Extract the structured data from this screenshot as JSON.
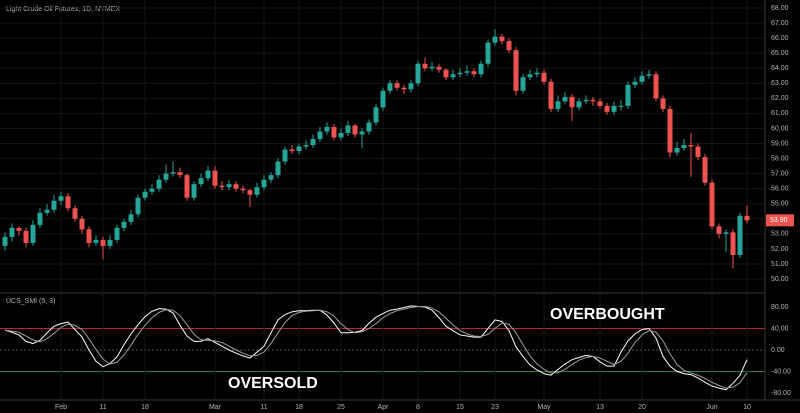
{
  "chart_data": [
    {
      "type": "candlestick",
      "title": "Light Crude Oil Futures, 1D, NYMEX",
      "up_color": "#26a69a",
      "down_color": "#ef5350",
      "ylim": [
        49.14,
        68.53
      ],
      "yticks": [
        {
          "value": 50,
          "label": "50.00"
        },
        {
          "value": 51,
          "label": "51.00"
        },
        {
          "value": 52,
          "label": "52.00"
        },
        {
          "value": 53,
          "label": "53.00"
        },
        {
          "value": 54,
          "label": "54.00"
        },
        {
          "value": 55,
          "label": "55.00"
        },
        {
          "value": 56,
          "label": "56.00"
        },
        {
          "value": 57,
          "label": "57.00"
        },
        {
          "value": 58,
          "label": "58.00"
        },
        {
          "value": 59,
          "label": "59.00"
        },
        {
          "value": 60,
          "label": "60.00"
        },
        {
          "value": 61,
          "label": "61.00"
        },
        {
          "value": 62,
          "label": "62.00"
        },
        {
          "value": 63,
          "label": "63.00"
        },
        {
          "value": 64,
          "label": "64.00"
        },
        {
          "value": 65,
          "label": "65.00"
        },
        {
          "value": 66,
          "label": "66.00"
        },
        {
          "value": 67,
          "label": "67.00"
        },
        {
          "value": 68,
          "label": "68.00"
        }
      ],
      "last_price": {
        "value": 53.9,
        "label": "53.90"
      },
      "ohlc": [
        [
          52.2,
          53.1,
          51.9,
          52.8
        ],
        [
          52.8,
          53.7,
          52.5,
          53.4
        ],
        [
          53.4,
          53.5,
          52.9,
          53.2
        ],
        [
          53.2,
          53.4,
          52.1,
          52.4
        ],
        [
          52.4,
          53.9,
          52.2,
          53.6
        ],
        [
          53.6,
          54.7,
          53.4,
          54.4
        ],
        [
          54.4,
          55.0,
          54.2,
          54.6
        ],
        [
          54.6,
          55.6,
          54.4,
          55.2
        ],
        [
          55.2,
          55.8,
          54.9,
          55.5
        ],
        [
          55.5,
          55.7,
          54.5,
          54.7
        ],
        [
          54.7,
          54.9,
          53.8,
          54.0
        ],
        [
          54.0,
          54.2,
          53.0,
          53.3
        ],
        [
          53.3,
          53.5,
          52.1,
          52.4
        ],
        [
          52.4,
          52.9,
          52.2,
          52.6
        ],
        [
          52.6,
          52.8,
          51.3,
          52.2
        ],
        [
          52.2,
          52.9,
          52.0,
          52.6
        ],
        [
          52.6,
          53.6,
          52.4,
          53.4
        ],
        [
          53.4,
          54.0,
          53.2,
          53.8
        ],
        [
          53.8,
          54.6,
          53.6,
          54.3
        ],
        [
          54.3,
          55.6,
          54.1,
          55.4
        ],
        [
          55.4,
          56.0,
          55.2,
          55.8
        ],
        [
          55.8,
          56.3,
          55.6,
          56.0
        ],
        [
          56.0,
          56.9,
          55.8,
          56.6
        ],
        [
          56.6,
          57.6,
          56.4,
          57.0
        ],
        [
          57.0,
          57.8,
          56.8,
          57.1
        ],
        [
          57.1,
          57.4,
          56.7,
          56.9
        ],
        [
          56.9,
          57.0,
          55.2,
          55.4
        ],
        [
          55.4,
          56.5,
          55.2,
          56.3
        ],
        [
          56.3,
          57.0,
          56.1,
          56.7
        ],
        [
          56.7,
          57.5,
          56.5,
          57.2
        ],
        [
          57.2,
          57.5,
          56.0,
          56.2
        ],
        [
          56.2,
          56.5,
          55.9,
          56.1
        ],
        [
          56.1,
          56.6,
          55.9,
          56.3
        ],
        [
          56.3,
          56.5,
          55.8,
          56.0
        ],
        [
          56.0,
          56.2,
          55.7,
          55.9
        ],
        [
          55.9,
          56.0,
          54.8,
          55.6
        ],
        [
          55.6,
          56.4,
          55.4,
          56.1
        ],
        [
          56.1,
          56.9,
          55.9,
          56.6
        ],
        [
          56.6,
          57.1,
          56.4,
          56.9
        ],
        [
          56.9,
          58.0,
          56.7,
          57.8
        ],
        [
          57.8,
          58.8,
          57.6,
          58.6
        ],
        [
          58.6,
          58.9,
          58.3,
          58.5
        ],
        [
          58.5,
          59.0,
          58.3,
          58.8
        ],
        [
          58.8,
          59.2,
          58.6,
          58.9
        ],
        [
          58.9,
          59.6,
          58.7,
          59.3
        ],
        [
          59.3,
          60.1,
          59.1,
          59.8
        ],
        [
          59.8,
          60.4,
          59.6,
          60.1
        ],
        [
          60.1,
          60.3,
          59.2,
          59.4
        ],
        [
          59.4,
          60.0,
          59.2,
          59.7
        ],
        [
          59.7,
          60.5,
          59.5,
          60.2
        ],
        [
          60.2,
          60.3,
          59.4,
          59.6
        ],
        [
          59.6,
          60.0,
          58.7,
          59.8
        ],
        [
          59.8,
          60.6,
          59.6,
          60.4
        ],
        [
          60.4,
          61.6,
          60.2,
          61.4
        ],
        [
          61.4,
          62.7,
          61.2,
          62.5
        ],
        [
          62.5,
          63.2,
          62.3,
          63.0
        ],
        [
          63.0,
          63.2,
          62.5,
          62.7
        ],
        [
          62.7,
          62.9,
          62.3,
          62.6
        ],
        [
          62.6,
          63.2,
          62.4,
          63.0
        ],
        [
          63.0,
          64.5,
          62.8,
          64.3
        ],
        [
          64.3,
          64.7,
          63.8,
          64.0
        ],
        [
          64.0,
          64.4,
          63.8,
          64.1
        ],
        [
          64.1,
          64.3,
          63.7,
          63.9
        ],
        [
          63.9,
          64.0,
          63.2,
          63.4
        ],
        [
          63.4,
          63.9,
          63.2,
          63.6
        ],
        [
          63.6,
          64.0,
          63.4,
          63.7
        ],
        [
          63.7,
          64.2,
          63.5,
          63.8
        ],
        [
          63.8,
          64.0,
          63.4,
          63.6
        ],
        [
          63.6,
          64.5,
          63.4,
          64.3
        ],
        [
          64.3,
          65.9,
          64.1,
          65.7
        ],
        [
          65.7,
          66.6,
          65.5,
          66.1
        ],
        [
          66.1,
          66.3,
          65.6,
          65.8
        ],
        [
          65.8,
          66.0,
          65.0,
          65.2
        ],
        [
          65.2,
          65.4,
          62.2,
          62.5
        ],
        [
          62.5,
          63.6,
          62.3,
          63.4
        ],
        [
          63.4,
          63.9,
          63.2,
          63.6
        ],
        [
          63.6,
          64.0,
          63.4,
          63.7
        ],
        [
          63.7,
          63.9,
          62.9,
          63.1
        ],
        [
          63.1,
          63.3,
          61.1,
          61.3
        ],
        [
          61.3,
          62.2,
          61.1,
          61.8
        ],
        [
          61.8,
          62.4,
          61.6,
          62.1
        ],
        [
          62.1,
          62.3,
          60.5,
          61.4
        ],
        [
          61.4,
          62.0,
          61.2,
          61.8
        ],
        [
          61.8,
          62.2,
          61.6,
          61.9
        ],
        [
          61.9,
          62.1,
          61.5,
          61.8
        ],
        [
          61.8,
          62.0,
          61.3,
          61.5
        ],
        [
          61.5,
          61.7,
          60.9,
          61.1
        ],
        [
          61.1,
          61.8,
          60.9,
          61.5
        ],
        [
          61.5,
          61.9,
          61.2,
          61.5
        ],
        [
          61.5,
          63.1,
          61.3,
          62.9
        ],
        [
          62.9,
          63.4,
          62.7,
          63.1
        ],
        [
          63.1,
          63.8,
          62.9,
          63.5
        ],
        [
          63.5,
          63.9,
          63.3,
          63.6
        ],
        [
          63.6,
          63.8,
          61.8,
          62.0
        ],
        [
          62.0,
          62.2,
          61.1,
          61.3
        ],
        [
          61.3,
          61.5,
          58.1,
          58.4
        ],
        [
          58.4,
          59.1,
          58.2,
          58.7
        ],
        [
          58.7,
          59.3,
          58.5,
          58.9
        ],
        [
          58.9,
          59.7,
          56.8,
          58.8
        ],
        [
          58.8,
          59.0,
          57.9,
          58.1
        ],
        [
          58.1,
          58.3,
          56.2,
          56.4
        ],
        [
          56.4,
          56.6,
          53.3,
          53.5
        ],
        [
          53.5,
          53.7,
          52.7,
          53.0
        ],
        [
          53.0,
          53.3,
          51.8,
          53.1
        ],
        [
          53.1,
          53.3,
          50.7,
          51.6
        ],
        [
          51.6,
          54.4,
          51.4,
          54.2
        ],
        [
          54.2,
          54.9,
          53.7,
          53.9
        ]
      ]
    },
    {
      "type": "line",
      "title": "UCS_SMI (5, 3)",
      "ylim": [
        -93,
        102.3
      ],
      "yticks": [
        {
          "value": 80,
          "label": "80.00"
        },
        {
          "value": 40,
          "label": "40.00"
        },
        {
          "value": 0,
          "label": "0.00"
        },
        {
          "value": -40,
          "label": "-40.00"
        },
        {
          "value": -80,
          "label": "-80.00"
        }
      ],
      "overbought_level": 40,
      "overbought_color": "#b22833",
      "oversold_level": -40,
      "oversold_color": "#2e7d32",
      "annotations": [
        "OVERBOUGHT",
        "OVERSOLD"
      ],
      "categories": [
        null,
        null,
        null,
        null,
        null,
        null,
        null,
        null,
        "Feb",
        null,
        null,
        null,
        null,
        null,
        "11",
        null,
        null,
        null,
        null,
        null,
        "18",
        null,
        null,
        null,
        null,
        null,
        null,
        null,
        null,
        null,
        "Mar",
        null,
        null,
        null,
        null,
        null,
        null,
        "11",
        null,
        null,
        null,
        null,
        "18",
        null,
        null,
        null,
        null,
        null,
        "25",
        null,
        null,
        null,
        null,
        null,
        "Apr",
        null,
        null,
        null,
        null,
        "8",
        null,
        null,
        null,
        null,
        null,
        "15",
        null,
        null,
        null,
        null,
        "23",
        null,
        null,
        null,
        null,
        null,
        null,
        "May",
        null,
        null,
        null,
        null,
        null,
        null,
        null,
        "13",
        null,
        null,
        null,
        null,
        null,
        "20",
        null,
        null,
        null,
        null,
        null,
        null,
        null,
        null,
        null,
        "Jun",
        null,
        null,
        null,
        null,
        "10"
      ],
      "series": [
        {
          "color": "#ffffff",
          "values": [
            37,
            33,
            28,
            16,
            12,
            18,
            32,
            44,
            49,
            52,
            38,
            24,
            0,
            -21,
            -31,
            -25,
            -13,
            10,
            30,
            47,
            62,
            72,
            77,
            76,
            69,
            46,
            26,
            16,
            16,
            21,
            14,
            7,
            0,
            -6,
            -11,
            -15,
            -4,
            7,
            32,
            56,
            66,
            71,
            73,
            73,
            74,
            74,
            65,
            50,
            32,
            32,
            33,
            36,
            50,
            61,
            68,
            74,
            76,
            79,
            82,
            81,
            80,
            74,
            60,
            44,
            36,
            28,
            26,
            24,
            24,
            40,
            56,
            53,
            36,
            6,
            -12,
            -28,
            -37,
            -44,
            -47,
            -36,
            -26,
            -18,
            -14,
            -10,
            -12,
            -22,
            -30,
            -30,
            -4,
            17,
            30,
            38,
            40,
            22,
            -12,
            -30,
            -40,
            -44,
            -46,
            -52,
            -60,
            -67,
            -71,
            -74,
            -62,
            -47,
            -18
          ]
        },
        {
          "color": "#9e9e9e",
          "values": [
            37,
            35,
            33,
            26,
            19,
            15,
            21,
            31,
            42,
            48,
            46,
            38,
            21,
            1,
            -17,
            -26,
            -23,
            -9,
            9,
            29,
            46,
            60,
            70,
            75,
            74,
            64,
            47,
            29,
            19,
            18,
            17,
            14,
            7,
            0,
            -6,
            -11,
            -10,
            -4,
            12,
            32,
            51,
            64,
            70,
            72,
            73,
            74,
            71,
            63,
            49,
            38,
            32,
            34,
            40,
            49,
            60,
            68,
            73,
            76,
            79,
            81,
            81,
            78,
            71,
            59,
            47,
            36,
            30,
            26,
            25,
            29,
            40,
            50,
            48,
            32,
            10,
            -11,
            -26,
            -36,
            -43,
            -42,
            -36,
            -27,
            -19,
            -14,
            -12,
            -15,
            -21,
            -27,
            -21,
            -6,
            14,
            28,
            36,
            33,
            17,
            -7,
            -27,
            -38,
            -43,
            -47,
            -53,
            -60,
            -66,
            -71,
            -69,
            -61,
            -42
          ]
        }
      ]
    }
  ]
}
